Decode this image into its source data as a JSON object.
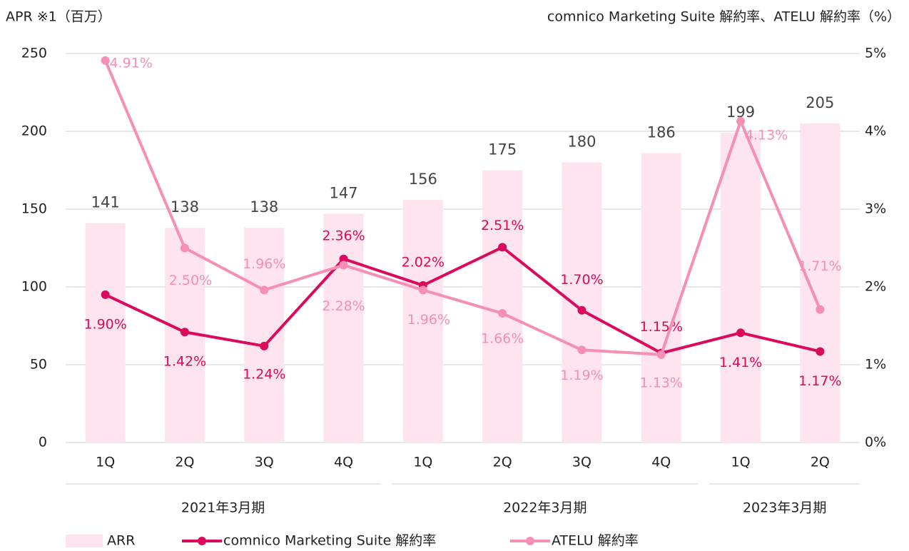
{
  "chart_data": {
    "type": "combo",
    "y_label": "APR ※1（百万）",
    "y2_label": "comnico Marketing Suite 解約率、ATELU 解約率（%）",
    "categories": [
      "1Q",
      "2Q",
      "3Q",
      "4Q",
      "1Q",
      "2Q",
      "3Q",
      "4Q",
      "1Q",
      "2Q"
    ],
    "groups": [
      {
        "label": "2021年3月期",
        "size": 4
      },
      {
        "label": "2022年3月期",
        "size": 4
      },
      {
        "label": "2023年3月期",
        "size": 2
      }
    ],
    "ylim": [
      0,
      250
    ],
    "yticks": [
      0,
      50,
      100,
      150,
      200,
      250
    ],
    "y2lim": [
      0,
      5
    ],
    "y2ticks": [
      {
        "value": 0,
        "label": "0%"
      },
      {
        "value": 1,
        "label": "1%"
      },
      {
        "value": 2,
        "label": "2%"
      },
      {
        "value": 3,
        "label": "3%"
      },
      {
        "value": 4,
        "label": "4%"
      },
      {
        "value": 5,
        "label": "5%"
      }
    ],
    "grid": true,
    "legend": "bottom",
    "series": [
      {
        "name": "ARR",
        "type": "bar",
        "color": "#fde4ee",
        "values": [
          141,
          138,
          138,
          147,
          156,
          175,
          180,
          186,
          199,
          205
        ]
      },
      {
        "name": "comnico Marketing Suite 解約率",
        "type": "line",
        "axis": "y2",
        "color": "#dc0a5c",
        "values": [
          1.9,
          1.42,
          1.24,
          2.36,
          2.02,
          2.51,
          1.7,
          1.15,
          1.41,
          1.17
        ],
        "value_labels": [
          "1.90%",
          "1.42%",
          "1.24%",
          "2.36%",
          "2.02%",
          "2.51%",
          "1.70%",
          "1.15%",
          "1.41%",
          "1.17%"
        ]
      },
      {
        "name": "ATELU 解約率",
        "type": "line",
        "axis": "y2",
        "color": "#f68fb5",
        "values": [
          4.91,
          2.5,
          1.96,
          2.28,
          1.96,
          1.66,
          1.19,
          1.13,
          4.13,
          1.71
        ],
        "value_labels": [
          "4.91%",
          "2.50%",
          "1.96%",
          "2.28%",
          "1.96%",
          "1.66%",
          "1.19%",
          "1.13%",
          "4.13%",
          "1.71%"
        ]
      }
    ]
  }
}
